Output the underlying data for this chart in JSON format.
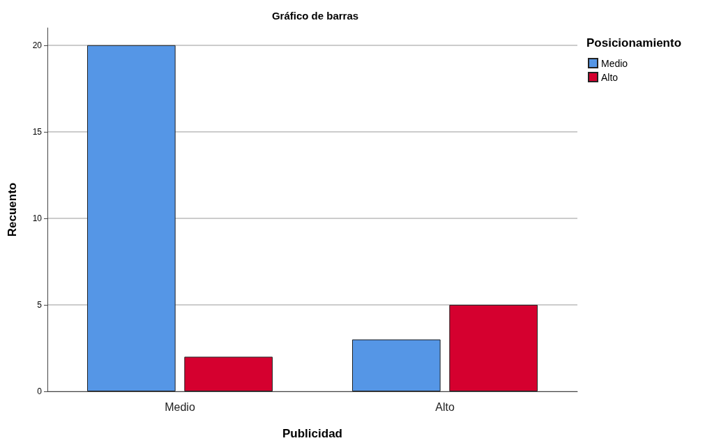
{
  "chart_data": {
    "type": "bar",
    "title": "Gráfico de barras",
    "xlabel": "Publicidad",
    "ylabel": "Recuento",
    "legend_title": "Posicionamiento",
    "categories": [
      "Medio",
      "Alto"
    ],
    "series": [
      {
        "name": "Medio",
        "color": "#5596e6",
        "values": [
          20,
          3
        ]
      },
      {
        "name": "Alto",
        "color": "#d5002f",
        "values": [
          2,
          5
        ]
      }
    ],
    "ylim": [
      0,
      21
    ],
    "yticks": [
      0,
      5,
      10,
      15,
      20
    ],
    "grid": "y",
    "legend": "top right"
  }
}
